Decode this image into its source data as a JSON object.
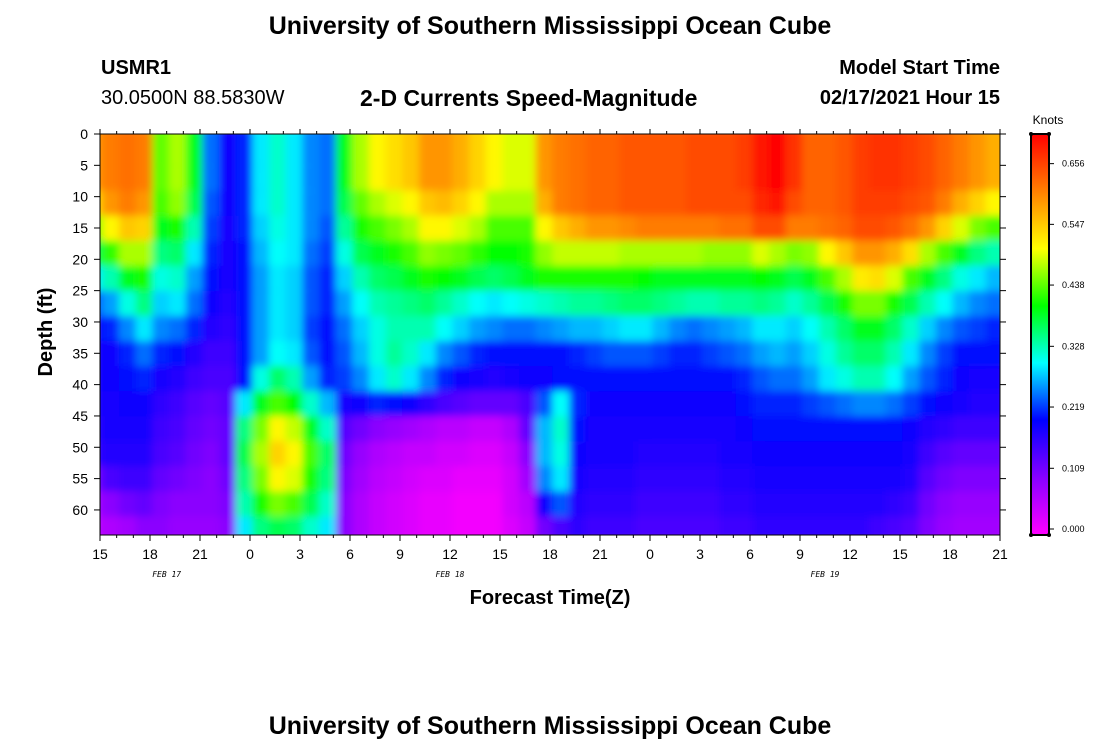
{
  "header": {
    "title_top": "University of Southern Mississippi Ocean Cube",
    "station_id": "USMR1",
    "station_coords": "30.0500N 88.5830W",
    "subtitle": "2-D Currents Speed-Magnitude",
    "model_label": "Model Start Time",
    "model_time": "02/17/2021 Hour 15"
  },
  "footer": {
    "title_bottom": "University of Southern Mississippi Ocean Cube"
  },
  "chart_data": {
    "type": "heatmap",
    "title": "2-D Currents Speed-Magnitude",
    "xlabel": "Forecast Time(Z)",
    "ylabel": "Depth (ft)",
    "units": "Knots",
    "x_hours": [
      0,
      3,
      6,
      9,
      12,
      15,
      18,
      21,
      24,
      27,
      30,
      33,
      36,
      39,
      42,
      45,
      48,
      51,
      54
    ],
    "x_tick_labels": [
      "15",
      "18",
      "21",
      "0",
      "3",
      "6",
      "9",
      "12",
      "15",
      "18",
      "21",
      "0",
      "3",
      "6",
      "9",
      "12",
      "15",
      "18",
      "21"
    ],
    "date_labels": [
      {
        "hour": 4,
        "text": "FEB 17"
      },
      {
        "hour": 21,
        "text": "FEB 18"
      },
      {
        "hour": 43.5,
        "text": "FEB 19"
      }
    ],
    "xlim": [
      0,
      54
    ],
    "y_tick_labels": [
      "0",
      "5",
      "10",
      "15",
      "20",
      "25",
      "30",
      "35",
      "40",
      "45",
      "50",
      "55",
      "60"
    ],
    "y_ticks": [
      0,
      5,
      10,
      15,
      20,
      25,
      30,
      35,
      40,
      45,
      50,
      55,
      60
    ],
    "ylim": [
      0,
      64
    ],
    "colorbar": {
      "min": 0.0,
      "max": 0.72,
      "tick_values": [
        0.0,
        0.109,
        0.219,
        0.328,
        0.438,
        0.547,
        0.656
      ],
      "tick_labels": [
        "0.000",
        "0.109",
        "0.219",
        "0.328",
        "0.438",
        "0.547",
        "0.656"
      ],
      "colors": [
        "#ff00ff",
        "#8800ff",
        "#0000ff",
        "#00ffff",
        "#00ff00",
        "#ffff00",
        "#ff8000",
        "#ff0000"
      ]
    },
    "grid_depths": [
      0,
      4,
      8,
      12,
      16,
      20,
      24,
      28,
      32,
      36,
      40,
      44,
      48,
      52,
      56,
      60,
      64
    ],
    "grid_hours": [
      0,
      1,
      2,
      3,
      4,
      5,
      6,
      7,
      8,
      9,
      10,
      11,
      12,
      13,
      14,
      15,
      16,
      17,
      18,
      19,
      20,
      21,
      22,
      23,
      24,
      25,
      26,
      27,
      28,
      29,
      30,
      31,
      32,
      33,
      34,
      35,
      36,
      37,
      38,
      39,
      40,
      41,
      42,
      43,
      44,
      45,
      46,
      47,
      48,
      49,
      50,
      51,
      52,
      53,
      54
    ],
    "speed_grid": [
      [
        0.6,
        0.62,
        0.63,
        0.62,
        0.45,
        0.48,
        0.4,
        0.25,
        0.2,
        0.22,
        0.3,
        0.33,
        0.3,
        0.26,
        0.25,
        0.4,
        0.48,
        0.52,
        0.54,
        0.56,
        0.6,
        0.6,
        0.58,
        0.55,
        0.52,
        0.5,
        0.5,
        0.6,
        0.62,
        0.63,
        0.64,
        0.64,
        0.65,
        0.65,
        0.65,
        0.65,
        0.66,
        0.66,
        0.66,
        0.67,
        0.7,
        0.72,
        0.68,
        0.64,
        0.64,
        0.65,
        0.67,
        0.68,
        0.68,
        0.67,
        0.66,
        0.64,
        0.62,
        0.6,
        0.58
      ],
      [
        0.6,
        0.62,
        0.63,
        0.62,
        0.45,
        0.48,
        0.4,
        0.25,
        0.2,
        0.22,
        0.3,
        0.33,
        0.3,
        0.26,
        0.25,
        0.4,
        0.48,
        0.52,
        0.54,
        0.56,
        0.6,
        0.6,
        0.58,
        0.55,
        0.52,
        0.5,
        0.5,
        0.6,
        0.62,
        0.63,
        0.64,
        0.64,
        0.65,
        0.65,
        0.65,
        0.65,
        0.66,
        0.66,
        0.66,
        0.67,
        0.7,
        0.72,
        0.68,
        0.64,
        0.64,
        0.65,
        0.67,
        0.68,
        0.68,
        0.67,
        0.66,
        0.64,
        0.62,
        0.6,
        0.58
      ],
      [
        0.6,
        0.62,
        0.63,
        0.62,
        0.45,
        0.48,
        0.4,
        0.25,
        0.2,
        0.22,
        0.3,
        0.33,
        0.3,
        0.26,
        0.25,
        0.4,
        0.48,
        0.52,
        0.54,
        0.56,
        0.6,
        0.6,
        0.58,
        0.55,
        0.52,
        0.5,
        0.5,
        0.6,
        0.62,
        0.63,
        0.64,
        0.64,
        0.65,
        0.65,
        0.65,
        0.65,
        0.66,
        0.66,
        0.66,
        0.67,
        0.7,
        0.72,
        0.68,
        0.64,
        0.64,
        0.65,
        0.67,
        0.68,
        0.68,
        0.67,
        0.66,
        0.64,
        0.62,
        0.6,
        0.58
      ],
      [
        0.55,
        0.6,
        0.62,
        0.6,
        0.44,
        0.47,
        0.38,
        0.24,
        0.2,
        0.22,
        0.3,
        0.33,
        0.3,
        0.26,
        0.25,
        0.38,
        0.45,
        0.48,
        0.5,
        0.52,
        0.56,
        0.57,
        0.55,
        0.52,
        0.48,
        0.48,
        0.48,
        0.58,
        0.62,
        0.63,
        0.64,
        0.64,
        0.65,
        0.65,
        0.65,
        0.65,
        0.66,
        0.66,
        0.66,
        0.66,
        0.69,
        0.7,
        0.66,
        0.64,
        0.64,
        0.65,
        0.67,
        0.67,
        0.67,
        0.66,
        0.65,
        0.62,
        0.58,
        0.55,
        0.52
      ],
      [
        0.46,
        0.52,
        0.56,
        0.55,
        0.4,
        0.42,
        0.34,
        0.23,
        0.19,
        0.22,
        0.29,
        0.32,
        0.3,
        0.26,
        0.24,
        0.35,
        0.42,
        0.44,
        0.46,
        0.48,
        0.52,
        0.52,
        0.5,
        0.48,
        0.44,
        0.44,
        0.44,
        0.52,
        0.56,
        0.58,
        0.6,
        0.6,
        0.61,
        0.62,
        0.62,
        0.62,
        0.62,
        0.62,
        0.63,
        0.63,
        0.66,
        0.66,
        0.62,
        0.62,
        0.63,
        0.64,
        0.66,
        0.66,
        0.65,
        0.63,
        0.6,
        0.55,
        0.5,
        0.46,
        0.44
      ],
      [
        0.38,
        0.43,
        0.48,
        0.48,
        0.36,
        0.37,
        0.3,
        0.22,
        0.19,
        0.21,
        0.28,
        0.31,
        0.3,
        0.25,
        0.23,
        0.32,
        0.38,
        0.4,
        0.42,
        0.44,
        0.47,
        0.46,
        0.45,
        0.43,
        0.41,
        0.41,
        0.42,
        0.47,
        0.49,
        0.49,
        0.49,
        0.49,
        0.48,
        0.48,
        0.48,
        0.48,
        0.48,
        0.47,
        0.47,
        0.47,
        0.5,
        0.48,
        0.46,
        0.47,
        0.52,
        0.56,
        0.6,
        0.6,
        0.58,
        0.54,
        0.48,
        0.44,
        0.4,
        0.36,
        0.34
      ],
      [
        0.3,
        0.34,
        0.4,
        0.42,
        0.32,
        0.33,
        0.27,
        0.21,
        0.19,
        0.21,
        0.27,
        0.3,
        0.29,
        0.24,
        0.22,
        0.29,
        0.34,
        0.37,
        0.38,
        0.4,
        0.42,
        0.41,
        0.4,
        0.38,
        0.37,
        0.38,
        0.4,
        0.42,
        0.42,
        0.42,
        0.42,
        0.42,
        0.42,
        0.41,
        0.4,
        0.4,
        0.4,
        0.4,
        0.4,
        0.4,
        0.41,
        0.4,
        0.38,
        0.4,
        0.44,
        0.48,
        0.53,
        0.54,
        0.5,
        0.44,
        0.4,
        0.36,
        0.32,
        0.3,
        0.28
      ],
      [
        0.24,
        0.27,
        0.32,
        0.36,
        0.29,
        0.3,
        0.25,
        0.2,
        0.18,
        0.21,
        0.27,
        0.3,
        0.29,
        0.24,
        0.22,
        0.27,
        0.31,
        0.34,
        0.35,
        0.36,
        0.37,
        0.35,
        0.33,
        0.31,
        0.3,
        0.31,
        0.32,
        0.33,
        0.34,
        0.35,
        0.35,
        0.36,
        0.37,
        0.37,
        0.36,
        0.35,
        0.34,
        0.34,
        0.35,
        0.35,
        0.36,
        0.35,
        0.33,
        0.35,
        0.38,
        0.42,
        0.46,
        0.46,
        0.42,
        0.38,
        0.34,
        0.31,
        0.28,
        0.26,
        0.25
      ],
      [
        0.2,
        0.22,
        0.26,
        0.3,
        0.26,
        0.25,
        0.22,
        0.18,
        0.17,
        0.21,
        0.27,
        0.3,
        0.29,
        0.23,
        0.21,
        0.25,
        0.29,
        0.32,
        0.34,
        0.34,
        0.34,
        0.31,
        0.29,
        0.27,
        0.26,
        0.25,
        0.25,
        0.26,
        0.27,
        0.28,
        0.28,
        0.29,
        0.3,
        0.3,
        0.28,
        0.26,
        0.25,
        0.26,
        0.27,
        0.28,
        0.3,
        0.3,
        0.29,
        0.31,
        0.34,
        0.37,
        0.4,
        0.4,
        0.37,
        0.33,
        0.29,
        0.26,
        0.24,
        0.23,
        0.22
      ],
      [
        0.19,
        0.2,
        0.22,
        0.25,
        0.22,
        0.21,
        0.18,
        0.16,
        0.16,
        0.21,
        0.27,
        0.31,
        0.3,
        0.24,
        0.21,
        0.24,
        0.28,
        0.32,
        0.35,
        0.33,
        0.3,
        0.26,
        0.24,
        0.22,
        0.21,
        0.21,
        0.21,
        0.21,
        0.21,
        0.22,
        0.23,
        0.24,
        0.24,
        0.24,
        0.23,
        0.22,
        0.22,
        0.23,
        0.24,
        0.25,
        0.27,
        0.28,
        0.27,
        0.29,
        0.32,
        0.35,
        0.37,
        0.37,
        0.34,
        0.3,
        0.26,
        0.23,
        0.21,
        0.21,
        0.21
      ],
      [
        0.19,
        0.2,
        0.21,
        0.22,
        0.19,
        0.18,
        0.16,
        0.15,
        0.15,
        0.21,
        0.32,
        0.37,
        0.34,
        0.27,
        0.22,
        0.23,
        0.26,
        0.3,
        0.33,
        0.3,
        0.26,
        0.22,
        0.2,
        0.19,
        0.18,
        0.19,
        0.2,
        0.2,
        0.21,
        0.21,
        0.21,
        0.21,
        0.21,
        0.21,
        0.21,
        0.21,
        0.21,
        0.21,
        0.21,
        0.22,
        0.24,
        0.25,
        0.25,
        0.27,
        0.3,
        0.32,
        0.34,
        0.34,
        0.31,
        0.27,
        0.24,
        0.22,
        0.2,
        0.19,
        0.19
      ],
      [
        0.19,
        0.19,
        0.2,
        0.2,
        0.17,
        0.16,
        0.14,
        0.13,
        0.14,
        0.3,
        0.4,
        0.44,
        0.41,
        0.33,
        0.28,
        0.19,
        0.2,
        0.22,
        0.21,
        0.2,
        0.17,
        0.15,
        0.14,
        0.13,
        0.13,
        0.13,
        0.15,
        0.24,
        0.31,
        0.22,
        0.2,
        0.2,
        0.2,
        0.2,
        0.2,
        0.2,
        0.2,
        0.2,
        0.2,
        0.21,
        0.22,
        0.22,
        0.22,
        0.23,
        0.24,
        0.25,
        0.26,
        0.26,
        0.25,
        0.23,
        0.21,
        0.2,
        0.19,
        0.18,
        0.18
      ],
      [
        0.18,
        0.19,
        0.19,
        0.19,
        0.16,
        0.15,
        0.13,
        0.12,
        0.13,
        0.36,
        0.46,
        0.52,
        0.49,
        0.4,
        0.33,
        0.14,
        0.12,
        0.1,
        0.09,
        0.08,
        0.07,
        0.06,
        0.06,
        0.05,
        0.05,
        0.07,
        0.13,
        0.28,
        0.33,
        0.21,
        0.19,
        0.19,
        0.19,
        0.19,
        0.19,
        0.19,
        0.19,
        0.19,
        0.19,
        0.2,
        0.21,
        0.21,
        0.21,
        0.21,
        0.21,
        0.21,
        0.21,
        0.21,
        0.21,
        0.2,
        0.18,
        0.17,
        0.16,
        0.16,
        0.16
      ],
      [
        0.17,
        0.18,
        0.18,
        0.18,
        0.15,
        0.14,
        0.12,
        0.11,
        0.13,
        0.38,
        0.48,
        0.55,
        0.52,
        0.44,
        0.37,
        0.12,
        0.09,
        0.07,
        0.06,
        0.05,
        0.05,
        0.04,
        0.04,
        0.03,
        0.03,
        0.05,
        0.1,
        0.28,
        0.32,
        0.2,
        0.19,
        0.19,
        0.19,
        0.18,
        0.18,
        0.18,
        0.18,
        0.18,
        0.19,
        0.19,
        0.2,
        0.2,
        0.2,
        0.2,
        0.2,
        0.2,
        0.2,
        0.2,
        0.2,
        0.19,
        0.16,
        0.14,
        0.13,
        0.13,
        0.13
      ],
      [
        0.12,
        0.15,
        0.16,
        0.16,
        0.13,
        0.12,
        0.11,
        0.1,
        0.12,
        0.36,
        0.46,
        0.52,
        0.5,
        0.42,
        0.36,
        0.11,
        0.08,
        0.06,
        0.05,
        0.04,
        0.03,
        0.03,
        0.02,
        0.02,
        0.02,
        0.04,
        0.08,
        0.26,
        0.3,
        0.19,
        0.18,
        0.18,
        0.18,
        0.17,
        0.17,
        0.17,
        0.17,
        0.17,
        0.18,
        0.18,
        0.19,
        0.19,
        0.19,
        0.19,
        0.19,
        0.19,
        0.19,
        0.19,
        0.19,
        0.18,
        0.14,
        0.12,
        0.11,
        0.11,
        0.11
      ],
      [
        0.08,
        0.1,
        0.12,
        0.13,
        0.11,
        0.1,
        0.1,
        0.1,
        0.11,
        0.34,
        0.42,
        0.46,
        0.44,
        0.38,
        0.33,
        0.1,
        0.07,
        0.05,
        0.04,
        0.03,
        0.02,
        0.02,
        0.01,
        0.01,
        0.01,
        0.04,
        0.06,
        0.2,
        0.24,
        0.18,
        0.17,
        0.17,
        0.17,
        0.16,
        0.16,
        0.16,
        0.16,
        0.16,
        0.17,
        0.17,
        0.18,
        0.18,
        0.18,
        0.18,
        0.18,
        0.18,
        0.18,
        0.18,
        0.17,
        0.16,
        0.12,
        0.1,
        0.09,
        0.09,
        0.09
      ],
      [
        0.06,
        0.07,
        0.08,
        0.1,
        0.1,
        0.09,
        0.09,
        0.09,
        0.1,
        0.3,
        0.36,
        0.38,
        0.37,
        0.33,
        0.3,
        0.1,
        0.07,
        0.05,
        0.04,
        0.03,
        0.02,
        0.02,
        0.01,
        0.01,
        0.01,
        0.03,
        0.05,
        0.12,
        0.15,
        0.17,
        0.16,
        0.16,
        0.16,
        0.15,
        0.15,
        0.15,
        0.15,
        0.15,
        0.16,
        0.16,
        0.17,
        0.17,
        0.17,
        0.17,
        0.17,
        0.17,
        0.17,
        0.16,
        0.15,
        0.14,
        0.11,
        0.09,
        0.08,
        0.08,
        0.08
      ]
    ]
  }
}
